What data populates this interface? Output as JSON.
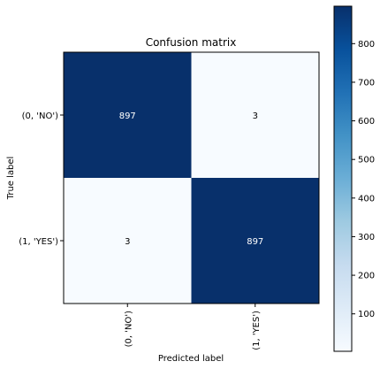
{
  "chart_data": {
    "type": "heatmap",
    "title": "Confusion matrix",
    "xlabel": "Predicted label",
    "ylabel": "True label",
    "x_categories": [
      "(0, 'NO')",
      "(1, 'YES')"
    ],
    "y_categories": [
      "(0, 'NO')",
      "(1, 'YES')"
    ],
    "values": [
      [
        897,
        3
      ],
      [
        3,
        897
      ]
    ],
    "colormap": "Blues",
    "color_low": "#f7fbff",
    "color_high": "#08306b",
    "text_color_dark_cells": "#ffffff",
    "text_color_light_cells": "#000000",
    "colorbar": {
      "range": [
        3,
        897
      ],
      "ticks": [
        100,
        200,
        300,
        400,
        500,
        600,
        700,
        800
      ]
    }
  }
}
